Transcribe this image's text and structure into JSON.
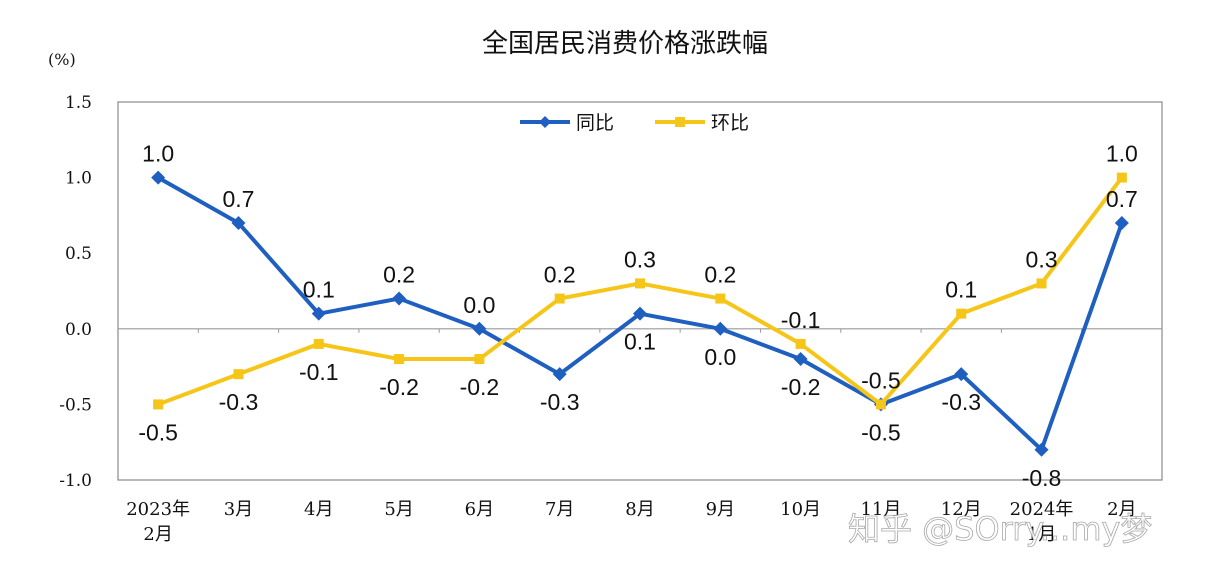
{
  "chart_data": {
    "type": "line",
    "title": "全国居民消费价格涨跌幅",
    "unit_label": "(%)",
    "xlabel": "",
    "ylabel": "",
    "ylim": [
      -1.0,
      1.5
    ],
    "yticks": [
      "1.5",
      "1.0",
      "0.5",
      "0.0",
      "-0.5",
      "-1.0"
    ],
    "ytick_values": [
      1.5,
      1.0,
      0.5,
      0.0,
      -0.5,
      -1.0
    ],
    "categories": [
      [
        "2023年",
        "2月"
      ],
      [
        "3月"
      ],
      [
        "4月"
      ],
      [
        "5月"
      ],
      [
        "6月"
      ],
      [
        "7月"
      ],
      [
        "8月"
      ],
      [
        "9月"
      ],
      [
        "10月"
      ],
      [
        "11月"
      ],
      [
        "12月"
      ],
      [
        "2024年",
        "1月"
      ],
      [
        "2月"
      ]
    ],
    "legend_position": "top-center",
    "grid": false,
    "series": [
      {
        "name": "同比",
        "color": "#1f5fbf",
        "marker": "diamond",
        "values": [
          1.0,
          0.7,
          0.1,
          0.2,
          0.0,
          -0.3,
          0.1,
          0.0,
          -0.2,
          -0.5,
          -0.3,
          -0.8,
          0.7
        ],
        "labels": [
          "1.0",
          "0.7",
          "0.1",
          "0.2",
          "0.0",
          "-0.3",
          "0.1",
          "0.0",
          "-0.2",
          "-0.5",
          "-0.3",
          "-0.8",
          "0.7"
        ],
        "label_side": [
          "above",
          "above",
          "above",
          "above",
          "above",
          "below",
          "below",
          "below",
          "below",
          "below",
          "below",
          "below",
          "above"
        ]
      },
      {
        "name": "环比",
        "color": "#f5c518",
        "marker": "square",
        "values": [
          -0.5,
          -0.3,
          -0.1,
          -0.2,
          -0.2,
          0.2,
          0.3,
          0.2,
          -0.1,
          -0.5,
          0.1,
          0.3,
          1.0
        ],
        "labels": [
          "-0.5",
          "-0.3",
          "-0.1",
          "-0.2",
          "-0.2",
          "0.2",
          "0.3",
          "0.2",
          "-0.1",
          "-0.5",
          "0.1",
          "0.3",
          "1.0"
        ],
        "label_side": [
          "below",
          "below",
          "below",
          "below",
          "below",
          "above",
          "above",
          "above",
          "above",
          "above",
          "above",
          "above",
          "above"
        ]
      }
    ]
  },
  "watermark": "知乎 @SOrry...my梦"
}
